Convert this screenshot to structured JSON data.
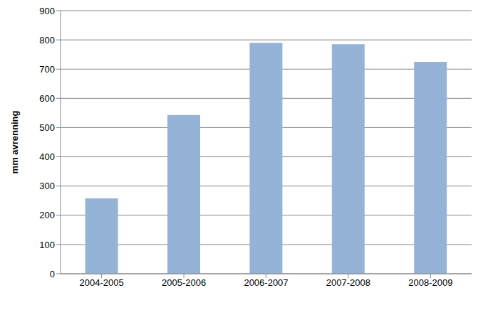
{
  "chart_data": {
    "type": "bar",
    "y_label": "mm avrenning",
    "categories": [
      "2004-2005",
      "2005-2006",
      "2006-2007",
      "2007-2008",
      "2008-2009"
    ],
    "values": [
      258,
      543,
      790,
      785,
      725
    ],
    "color": "#95b3d7",
    "ylim": [
      0,
      900
    ],
    "yticks": [
      0,
      100,
      200,
      300,
      400,
      500,
      600,
      700,
      800,
      900
    ],
    "grid": true
  }
}
